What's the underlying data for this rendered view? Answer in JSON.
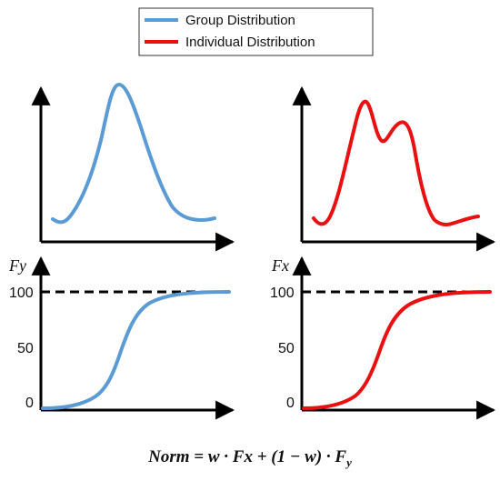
{
  "colors": {
    "group": "#5b9bd5",
    "individual": "#e81010",
    "axis": "#000000",
    "reference": "#000000"
  },
  "legend": {
    "items": [
      {
        "label": "Group Distribution",
        "color": "#5b9bd5"
      },
      {
        "label": "Individual Distribution",
        "color": "#e81010"
      }
    ]
  },
  "left_panel": {
    "y_axis_label": "Fy",
    "ticks": [
      "100",
      "50",
      "0"
    ]
  },
  "right_panel": {
    "y_axis_label": "Fx",
    "ticks": [
      "100",
      "50",
      "0"
    ]
  },
  "formula": {
    "text": "Norm = w · Fx + (1 − w) · F",
    "subscript": "y"
  },
  "chart_data": [
    {
      "type": "line",
      "name": "",
      "series": [
        {
          "name": "Group Distribution",
          "color": "#5b9bd5",
          "shape": "unimodal bell density",
          "x": [
            0,
            1,
            2,
            3,
            4,
            5,
            6,
            7,
            8,
            9,
            10
          ],
          "y": [
            0.08,
            0.05,
            0.18,
            0.55,
            0.95,
            0.92,
            0.6,
            0.25,
            0.06,
            0.03,
            0.05
          ]
        }
      ]
    },
    {
      "type": "line",
      "name": "",
      "series": [
        {
          "name": "Individual Distribution",
          "color": "#e81010",
          "shape": "bimodal density",
          "x": [
            0,
            1,
            2,
            3,
            4,
            5,
            6,
            7,
            8,
            9,
            10
          ],
          "y": [
            0.08,
            0.05,
            0.35,
            0.95,
            0.68,
            0.8,
            0.78,
            0.35,
            0.05,
            0.04,
            0.08
          ]
        }
      ]
    },
    {
      "type": "line",
      "name": "",
      "ylim": [
        0,
        100
      ],
      "y_ticks": [
        0,
        50,
        100
      ],
      "reference_line": 100,
      "series": [
        {
          "name": "Group Distribution",
          "color": "#5b9bd5",
          "shape": "sigmoid cumulative",
          "x": [
            0,
            1,
            2,
            3,
            4,
            5,
            6,
            7,
            8,
            9,
            10
          ],
          "y": [
            0,
            0.5,
            2,
            5,
            18,
            55,
            82,
            93,
            97,
            98.5,
            99
          ]
        }
      ]
    },
    {
      "type": "line",
      "name": "",
      "ylim": [
        0,
        100
      ],
      "y_ticks": [
        0,
        50,
        100
      ],
      "reference_line": 100,
      "series": [
        {
          "name": "Individual Distribution",
          "color": "#e81010",
          "shape": "sigmoid cumulative",
          "x": [
            0,
            1,
            2,
            3,
            4,
            5,
            6,
            7,
            8,
            9,
            10
          ],
          "y": [
            0,
            0.5,
            2,
            6,
            22,
            62,
            86,
            95,
            98,
            99,
            99.5
          ]
        }
      ]
    }
  ]
}
